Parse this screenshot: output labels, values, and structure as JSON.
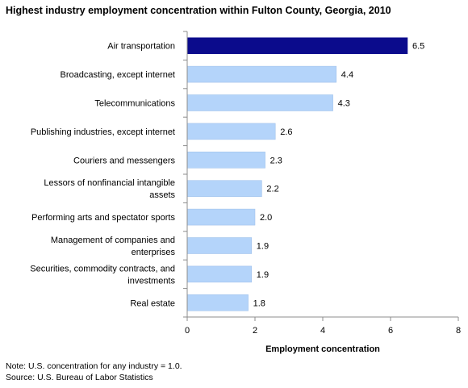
{
  "chart_data": {
    "type": "bar",
    "orientation": "horizontal",
    "title": "Highest industry employment concentration within Fulton County, Georgia, 2010",
    "xlabel": "Employment concentration",
    "ylabel": "",
    "xlim": [
      0,
      8
    ],
    "x_ticks": [
      "0",
      "2",
      "4",
      "6",
      "8"
    ],
    "grid": false,
    "categories": [
      [
        "Air transportation"
      ],
      [
        "Broadcasting, except internet"
      ],
      [
        "Telecommunications"
      ],
      [
        "Publishing industries, except internet"
      ],
      [
        "Couriers and messengers"
      ],
      [
        "Lessors of nonfinancial intangible",
        "assets"
      ],
      [
        "Performing arts and spectator sports"
      ],
      [
        "Management of companies and",
        "enterprises"
      ],
      [
        "Securities, commodity contracts, and",
        "investments"
      ],
      [
        "Real estate"
      ]
    ],
    "values": [
      6.5,
      4.4,
      4.3,
      2.6,
      2.3,
      2.2,
      2.0,
      1.9,
      1.9,
      1.8
    ],
    "value_labels": [
      "6.5",
      "4.4",
      "4.3",
      "2.6",
      "2.3",
      "2.2",
      "2.0",
      "1.9",
      "1.9",
      "1.8"
    ],
    "colors": {
      "highlight": "#0b0b8c",
      "bar": "#b4d4fa",
      "bar_border": "#9bbde8",
      "axis": "#8c8c8c"
    },
    "highlight_index": 0
  },
  "notes": {
    "note": "Note: U.S. concentration for any industry = 1.0.",
    "source": "Source: U.S. Bureau of Labor Statistics"
  }
}
